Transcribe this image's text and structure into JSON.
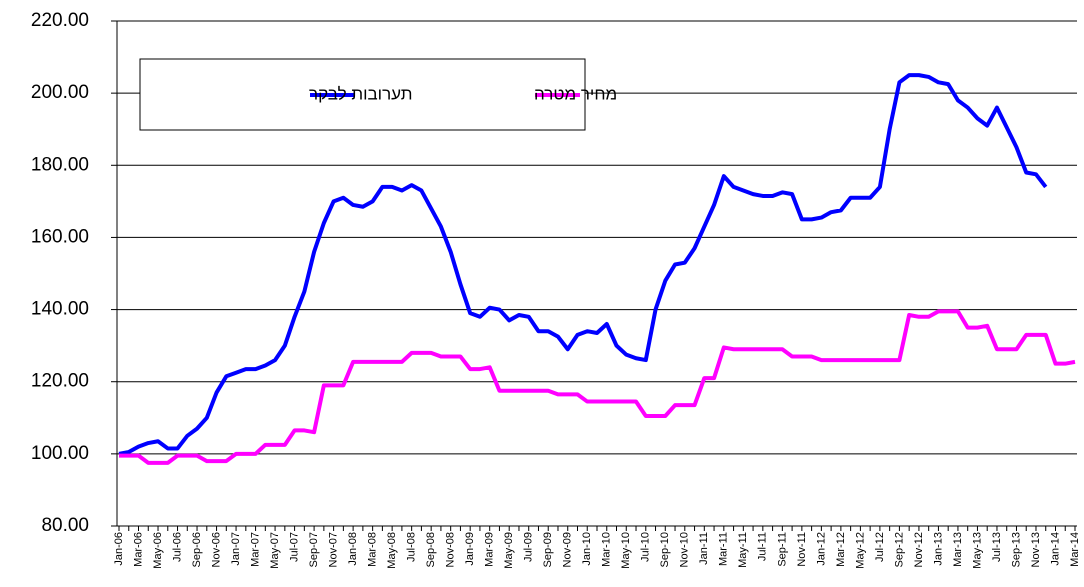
{
  "chart_data": {
    "type": "line",
    "categories": [
      "Jan-06",
      null,
      "Mar-06",
      null,
      "May-06",
      null,
      "Jul-06",
      null,
      "Sep-06",
      null,
      "Nov-06",
      null,
      "Jan-07",
      null,
      "Mar-07",
      null,
      "May-07",
      null,
      "Jul-07",
      null,
      "Sep-07",
      null,
      "Nov-07",
      null,
      "Jan-08",
      null,
      "Mar-08",
      null,
      "May-08",
      null,
      "Jul-08",
      null,
      "Sep-08",
      null,
      "Nov-08",
      null,
      "Jan-09",
      null,
      "Mar-09",
      null,
      "May-09",
      null,
      "Jul-09",
      null,
      "Sep-09",
      null,
      "Nov-09",
      null,
      "Jan-10",
      null,
      "Mar-10",
      null,
      "May-10",
      null,
      "Jul-10",
      null,
      "Sep-10",
      null,
      "Nov-10",
      null,
      "Jan-11",
      null,
      "Mar-11",
      null,
      "May-11",
      null,
      "Jul-11",
      null,
      "Sep-11",
      null,
      "Nov-11",
      null,
      "Jan-12",
      null,
      "Mar-12",
      null,
      "May-12",
      null,
      "Jul-12",
      null,
      "Sep-12",
      null,
      "Nov-12",
      null,
      "Jan-13",
      null,
      "Mar-13",
      null,
      "May-13",
      null,
      "Jul-13",
      null,
      "Sep-13",
      null,
      "Nov-13",
      null,
      "Jan-14",
      null,
      "Mar-14"
    ],
    "series": [
      {
        "name": "תערובות לבקר",
        "color": "#0000ff",
        "values": [
          100,
          100.5,
          102,
          103,
          103.5,
          101.5,
          101.5,
          105,
          107,
          110,
          117,
          121.5,
          122.5,
          123.5,
          123.5,
          124.5,
          126,
          130,
          138,
          145,
          156,
          164,
          170,
          171,
          169,
          168.5,
          170,
          174,
          174,
          173,
          174.5,
          173,
          168,
          163,
          156,
          147,
          139,
          138,
          140.5,
          140,
          137,
          138.5,
          138,
          134,
          134,
          132.5,
          129,
          133,
          134,
          133.5,
          136,
          130,
          127.5,
          126.5,
          126,
          140,
          148,
          152.5,
          153,
          157,
          163,
          169,
          177,
          174,
          173,
          172,
          171.5,
          171.5,
          172.5,
          172,
          165,
          165,
          165.5,
          167,
          167.5,
          171,
          171,
          171,
          174,
          190,
          203,
          205,
          205,
          204.5,
          203,
          202.5,
          198,
          196,
          193,
          191,
          196,
          190.5,
          185,
          178,
          177.5,
          174,
          null,
          null,
          null
        ]
      },
      {
        "name": "מחיר מטרה",
        "color": "#ff00ff",
        "values": [
          99.5,
          99.5,
          99.5,
          97.5,
          97.5,
          97.5,
          99.5,
          99.5,
          99.5,
          98,
          98,
          98,
          100,
          100,
          100,
          102.5,
          102.5,
          102.5,
          106.5,
          106.5,
          106,
          119,
          119,
          119,
          125.5,
          125.5,
          125.5,
          125.5,
          125.5,
          125.5,
          128,
          128,
          128,
          127,
          127,
          127,
          123.5,
          123.5,
          124,
          117.5,
          117.5,
          117.5,
          117.5,
          117.5,
          117.5,
          116.5,
          116.5,
          116.5,
          114.5,
          114.5,
          114.5,
          114.5,
          114.5,
          114.5,
          110.5,
          110.5,
          110.5,
          113.5,
          113.5,
          113.5,
          121,
          121,
          129.5,
          129,
          129,
          129,
          129,
          129,
          129,
          127,
          127,
          127,
          126,
          126,
          126,
          126,
          126,
          126,
          126,
          126,
          126,
          138.5,
          138,
          138,
          139.5,
          139.5,
          139.5,
          135,
          135,
          135.5,
          129,
          129,
          129,
          133,
          133,
          133,
          125,
          125,
          125.5
        ]
      }
    ],
    "ylim": [
      80,
      220
    ],
    "yticks": [
      {
        "value": 80,
        "label": "80.00"
      },
      {
        "value": 100,
        "label": "100.00"
      },
      {
        "value": 120,
        "label": "120.00"
      },
      {
        "value": 140,
        "label": "140.00"
      },
      {
        "value": 160,
        "label": "160.00"
      },
      {
        "value": 180,
        "label": "180.00"
      },
      {
        "value": 200,
        "label": "200.00"
      },
      {
        "value": 220,
        "label": "220.00"
      }
    ],
    "grid": true
  }
}
